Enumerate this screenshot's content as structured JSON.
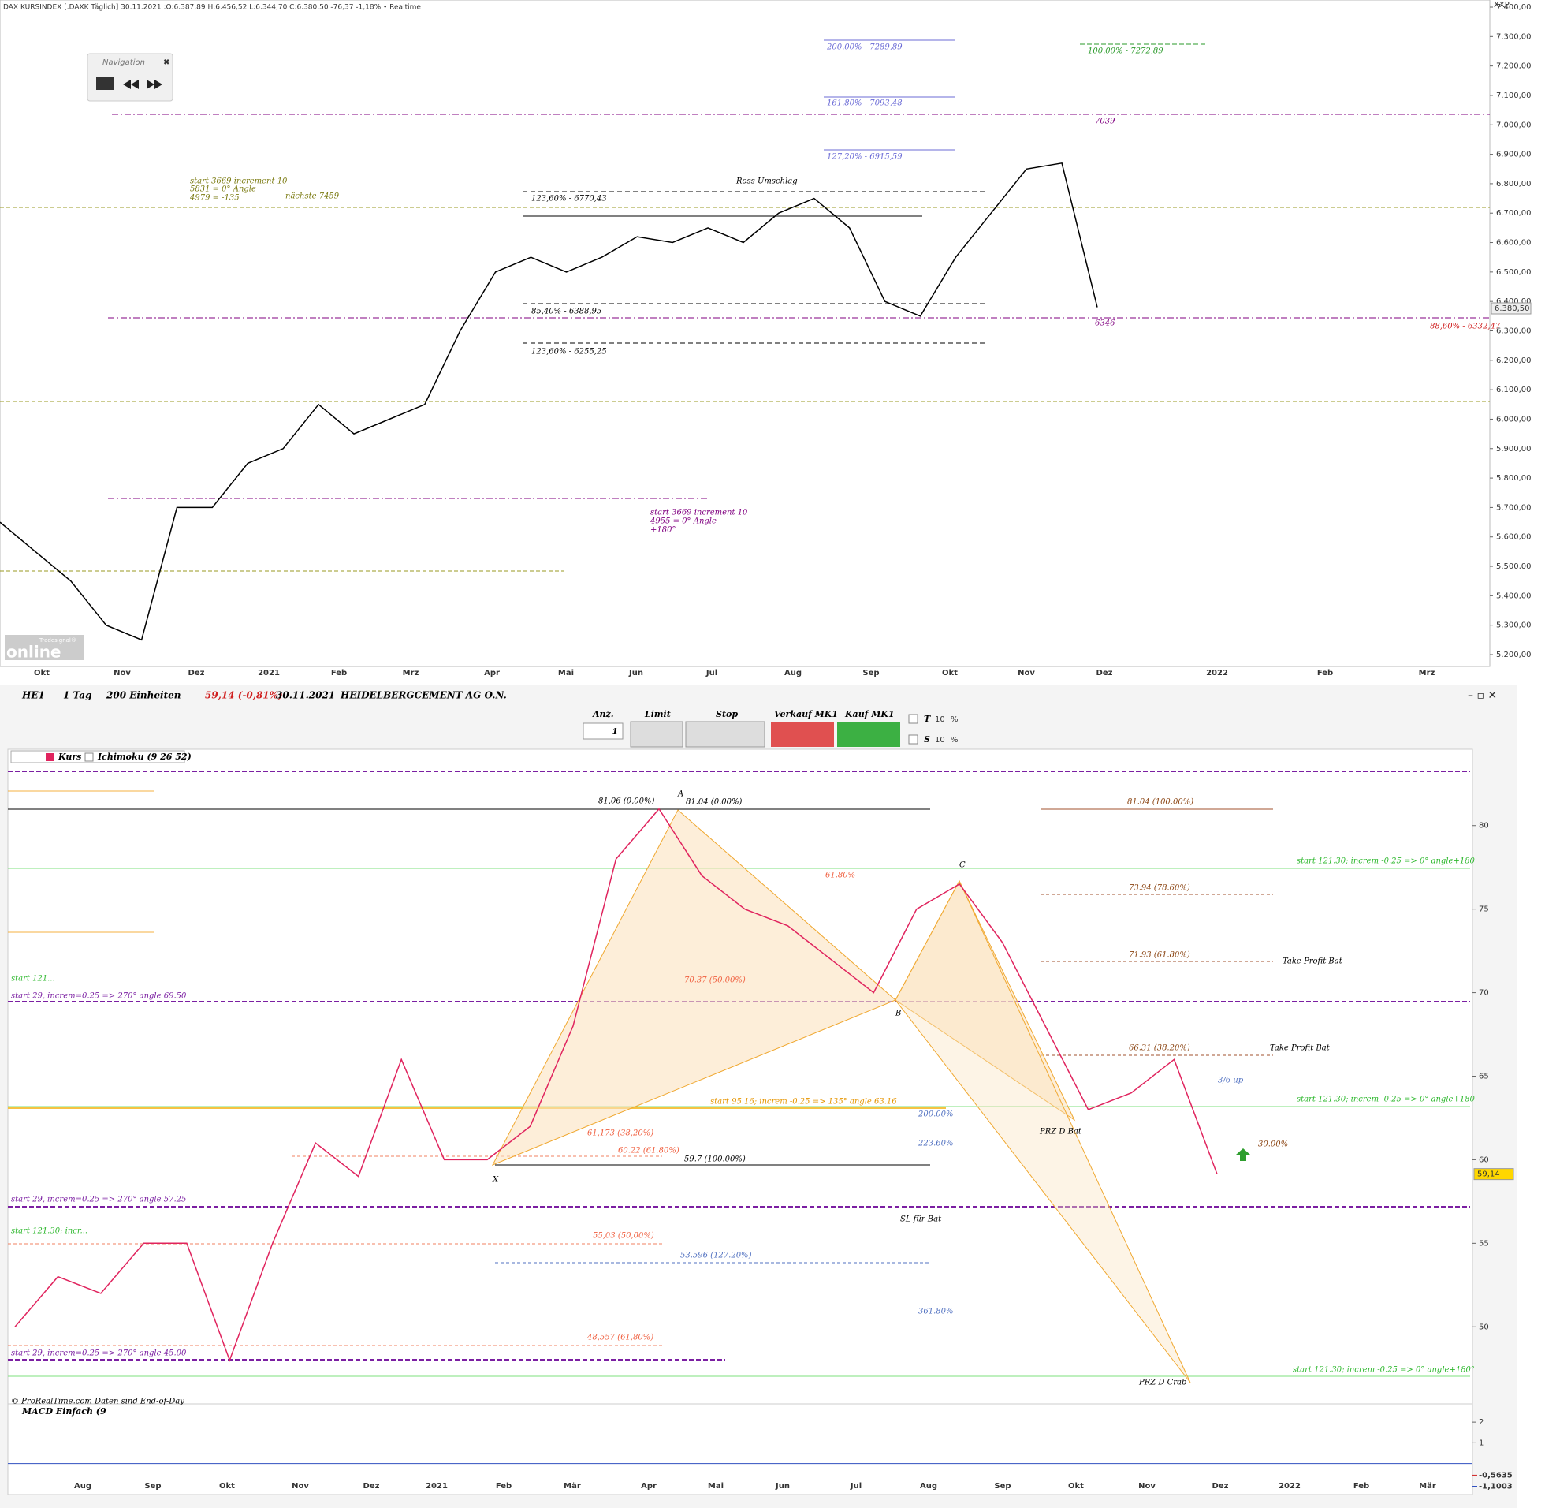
{
  "top_header": "DAX KURSINDEX [.DAXK Täglich] 30.11.2021 :O:6.387,89 H:6.456,52 L:6.344,70 C:6.380,50 -76,37 -1,18% • Realtime",
  "navigation": "Navigation",
  "logo": {
    "small": "Tradesignal®",
    "big": "online"
  },
  "chart_data": [
    {
      "type": "line",
      "color": "#000000",
      "values": [
        5650,
        5550,
        5450,
        5300,
        5250,
        5700,
        5700,
        5850,
        5900,
        6050,
        5950,
        6000,
        6050,
        6300,
        6500,
        6550,
        6500,
        6550,
        6620,
        6600,
        6650,
        6600,
        6700,
        6750,
        6650,
        6400,
        6350,
        6550,
        6700,
        6850,
        6870,
        6380
      ],
      "ylim": [
        5200,
        7400
      ],
      "yticks": [
        {
          "value": 7400,
          "label": "7.400,00"
        },
        {
          "value": 7300,
          "label": "7.300,00"
        },
        {
          "value": 7200,
          "label": "7.200,00"
        },
        {
          "value": 7100,
          "label": "7.100,00"
        },
        {
          "value": 7000,
          "label": "7.000,00"
        },
        {
          "value": 6900,
          "label": "6.900,00"
        },
        {
          "value": 6800,
          "label": "6.800,00"
        },
        {
          "value": 6700,
          "label": "6.700,00"
        },
        {
          "value": 6600,
          "label": "6.600,00"
        },
        {
          "value": 6500,
          "label": "6.500,00"
        },
        {
          "value": 6400,
          "label": "6.400,00"
        },
        {
          "value": 6300,
          "label": "6.300,00"
        },
        {
          "value": 6200,
          "label": "6.200,00"
        },
        {
          "value": 6100,
          "label": "6.100,00"
        },
        {
          "value": 6000,
          "label": "6.000,00"
        },
        {
          "value": 5900,
          "label": "5.900,00"
        },
        {
          "value": 5800,
          "label": "5.800,00"
        },
        {
          "value": 5700,
          "label": "5.700,00"
        },
        {
          "value": 5600,
          "label": "5.600,00"
        },
        {
          "value": 5500,
          "label": "5.500,00"
        },
        {
          "value": 5400,
          "label": "5.400,00"
        },
        {
          "value": 5300,
          "label": "5.300,00"
        },
        {
          "value": 5200,
          "label": "5.200,00"
        }
      ],
      "x_labels": [
        "Okt",
        "Nov",
        "Dez",
        "2021",
        "Feb",
        "Mrz",
        "Apr",
        "Mai",
        "Jun",
        "Jul",
        "Aug",
        "Sep",
        "Okt",
        "Nov",
        "Dez",
        "2022",
        "Feb",
        "Mrz"
      ],
      "price_label": "6.380,50",
      "axis_name": "XXP",
      "annotations": [
        "123,60% - 6770,43",
        "85,40% - 6388,95",
        "123,60% - 6255,25",
        "Ross Umschlag",
        "200,00% - 7289,89",
        "161,80% - 7093,48",
        "127,20% - 6915,59",
        "100,00% - 7272,89",
        "7039",
        "6346",
        "88,60% - 6332,47",
        "start 3669 increment 10",
        "5831 = 0° Angle",
        "4979 = -135",
        "nächste 7459",
        "start 3669 increment 10",
        "4955 = 0° Angle",
        "+180°"
      ]
    },
    {
      "type": "line",
      "color": "#e0245e",
      "values": [
        50,
        53,
        52,
        55,
        55,
        48,
        55,
        61,
        59,
        66,
        60,
        60,
        62,
        68,
        78,
        81,
        77,
        75,
        74,
        72,
        70,
        75,
        76.5,
        73,
        68,
        63,
        64,
        66,
        59.14
      ],
      "ylim": [
        46,
        84
      ],
      "yticks": [
        80,
        75,
        70,
        65,
        60,
        55,
        50
      ],
      "x_labels": [
        "Aug",
        "Sep",
        "Okt",
        "Nov",
        "Dez",
        "2021",
        "Feb",
        "Mär",
        "Apr",
        "Mai",
        "Jun",
        "Jul",
        "Aug",
        "Sep",
        "Okt",
        "Nov",
        "Dez",
        "2022",
        "Feb",
        "Mär"
      ],
      "price_label": "59,14",
      "toolbar": {
        "symbol": "HE1",
        "period": "1 Tag",
        "units": "200 Einheiten",
        "quote": "59,14 (-0,81%)",
        "date": "30.11.2021",
        "name": "HEIDELBERGCEMENT AG O.N.",
        "anz": "Anz.",
        "qty": "1",
        "limit": "Limit",
        "stop": "Stop",
        "sell": "Verkauf MK1",
        "buy": "Kauf MK1",
        "t": "T",
        "s": "S",
        "t_val": "10",
        "s_val": "10",
        "pct": "%"
      },
      "legend": [
        "Kurs",
        "Ichimoku (9 26 52)"
      ],
      "copyright": "© ProRealTime.com  Daten sind End-of-Day",
      "annotations": [
        "81,06 (0,00%)",
        "81.04 (0.00%)",
        "81.04 (100.00%)",
        "73.94 (78.60%)",
        "71.93 (61.80%)",
        "66.31 (38.20%)",
        "61.80%",
        "70.37 (50.00%)",
        "61,173 (38,20%)",
        "60.22 (61.80%)",
        "59.7 (100.00%)",
        "55,03 (50,00%)",
        "53.596 (127.20%)",
        "48,557 (61,80%)",
        "200.00%",
        "223.60%",
        "361.80%",
        "A",
        "C",
        "B",
        "X",
        "Take Profit Bat",
        "Take Profit Bat",
        "3/6 up",
        "30.00%",
        "PRZ D Bat",
        "SL für Bat",
        "PRZ D Crab",
        "start 121.30; increm -0.25 => 0° angle+180",
        "start 121.30; increm -0.25 => 0° angle+180",
        "start 121.30; increm -0.25 => 0° angle+180°",
        "start 29, increm=0.25 => 270° angle 69.50",
        "start 29, increm=0.25 => 270° angle 57.25",
        "start 29, increm=0.25 => 270° angle 45.00",
        "start 121...",
        "start 121.30; incr...",
        "start 95.16; increm -0.25 => 135° angle 63.16"
      ],
      "macd": {
        "title": "MACD Einfach (9",
        "ylim": [
          -1.5,
          2.5
        ],
        "yticks": [
          2,
          1
        ],
        "markers": [
          {
            "value": -0.5635,
            "label": "-0,5635"
          },
          {
            "value": -1.1003,
            "label": "-1,1003"
          }
        ]
      }
    }
  ]
}
